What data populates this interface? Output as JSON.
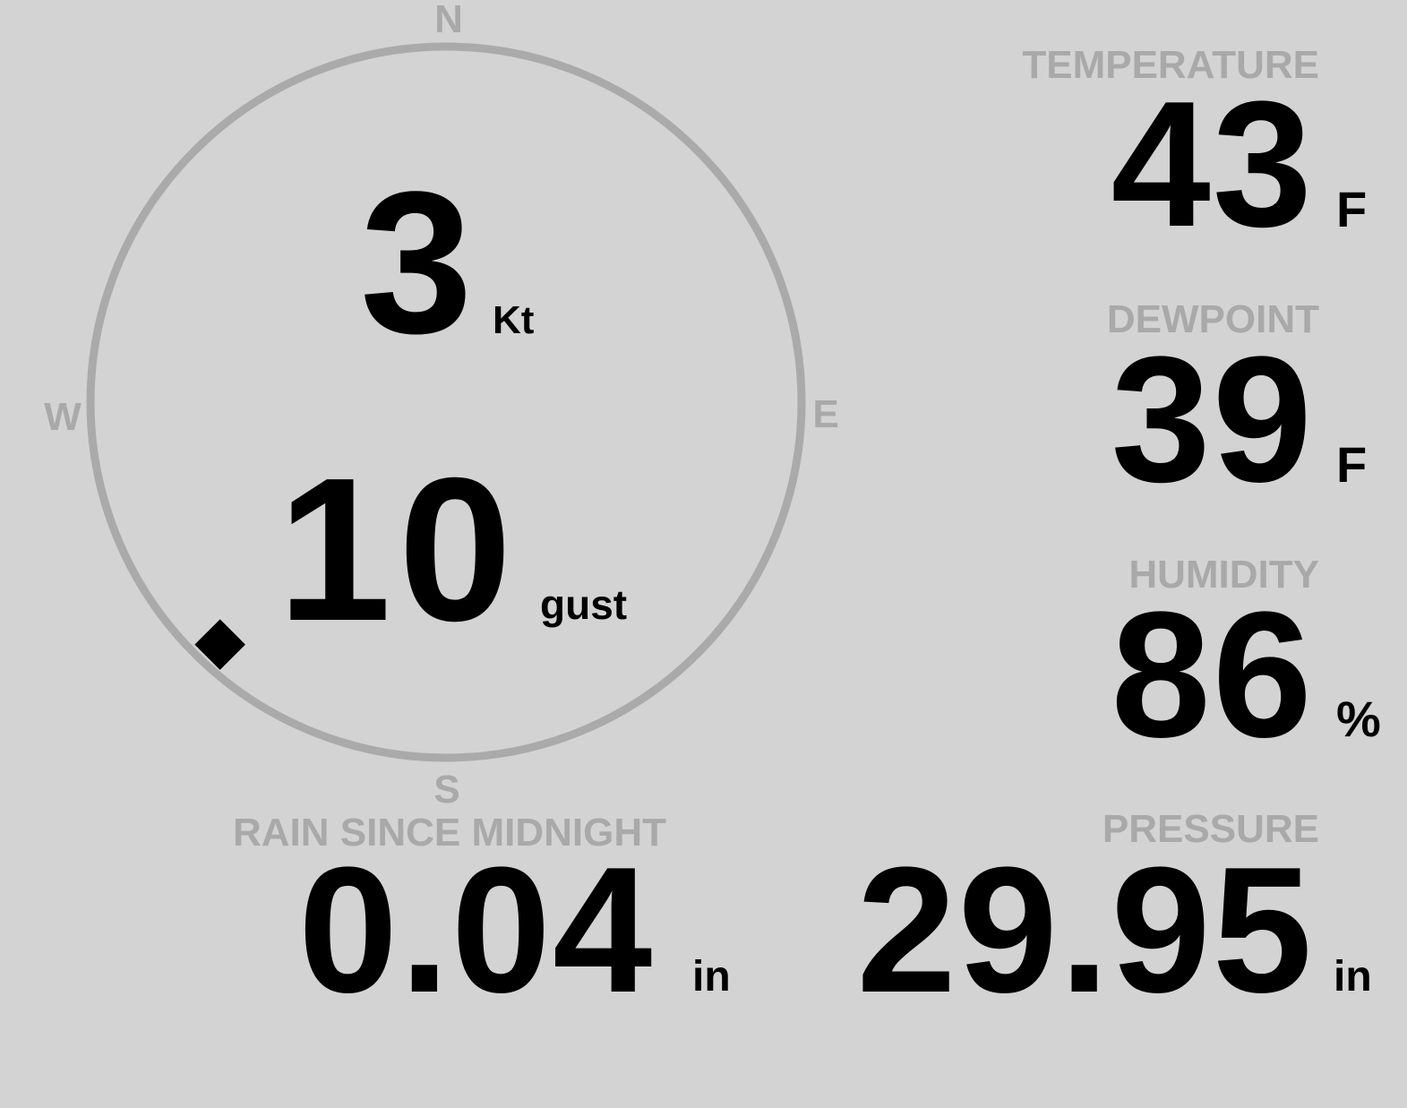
{
  "wind": {
    "compass": {
      "north": "N",
      "south": "S",
      "east": "E",
      "west": "W"
    },
    "direction_degrees": 223,
    "speed": "3",
    "speed_unit": "Kt",
    "gust": "10",
    "gust_unit": "gust"
  },
  "temperature": {
    "label": "TEMPERATURE",
    "value": "43",
    "unit": "F"
  },
  "dewpoint": {
    "label": "DEWPOINT",
    "value": "39",
    "unit": "F"
  },
  "humidity": {
    "label": "HUMIDITY",
    "value": "86",
    "unit": "%"
  },
  "rain": {
    "label": "RAIN SINCE MIDNIGHT",
    "value": "0.04",
    "unit": "in"
  },
  "pressure": {
    "label": "PRESSURE",
    "value": "29.95",
    "unit": "in"
  },
  "colors": {
    "background": "#d3d3d3",
    "label": "#a9a9a9",
    "value": "#000000",
    "ring": "#aaaaaa"
  }
}
